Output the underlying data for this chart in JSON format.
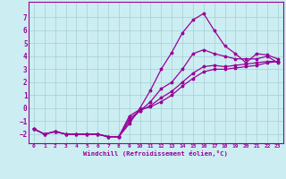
{
  "xlabel": "Windchill (Refroidissement éolien,°C)",
  "xlim": [
    -0.5,
    23.5
  ],
  "ylim": [
    -2.7,
    8.2
  ],
  "xticks": [
    0,
    1,
    2,
    3,
    4,
    5,
    6,
    7,
    8,
    9,
    10,
    11,
    12,
    13,
    14,
    15,
    16,
    17,
    18,
    19,
    20,
    21,
    22,
    23
  ],
  "yticks": [
    -2,
    -1,
    0,
    1,
    2,
    3,
    4,
    5,
    6,
    7
  ],
  "background_color": "#cceef2",
  "grid_color": "#aad4d8",
  "line_color": "#990099",
  "lines": [
    {
      "x": [
        0,
        1,
        2,
        3,
        4,
        5,
        6,
        7,
        8,
        9,
        10,
        11,
        12,
        13,
        14,
        15,
        16,
        17,
        18,
        19,
        20,
        21,
        22,
        23
      ],
      "y": [
        -1.6,
        -2.0,
        -1.8,
        -2.0,
        -2.0,
        -2.0,
        -2.0,
        -2.2,
        -2.2,
        -1.2,
        0.0,
        1.4,
        3.0,
        4.3,
        5.8,
        6.8,
        7.3,
        6.0,
        4.8,
        4.2,
        3.5,
        4.2,
        4.1,
        3.8
      ]
    },
    {
      "x": [
        0,
        1,
        2,
        3,
        4,
        5,
        6,
        7,
        8,
        9,
        10,
        11,
        12,
        13,
        14,
        15,
        16,
        17,
        18,
        19,
        20,
        21,
        22,
        23
      ],
      "y": [
        -1.6,
        -2.0,
        -1.8,
        -2.0,
        -2.0,
        -2.0,
        -2.0,
        -2.2,
        -2.2,
        -1.0,
        -0.2,
        0.5,
        1.5,
        2.0,
        3.0,
        4.2,
        4.5,
        4.2,
        4.0,
        3.8,
        3.8,
        3.8,
        4.0,
        3.5
      ]
    },
    {
      "x": [
        0,
        1,
        2,
        3,
        4,
        5,
        6,
        7,
        8,
        9,
        10,
        11,
        12,
        13,
        14,
        15,
        16,
        17,
        18,
        19,
        20,
        21,
        22,
        23
      ],
      "y": [
        -1.6,
        -2.0,
        -1.8,
        -2.0,
        -2.0,
        -2.0,
        -2.0,
        -2.2,
        -2.2,
        -0.8,
        -0.2,
        0.2,
        0.8,
        1.3,
        2.0,
        2.7,
        3.2,
        3.3,
        3.2,
        3.3,
        3.4,
        3.5,
        3.6,
        3.6
      ]
    },
    {
      "x": [
        0,
        1,
        2,
        3,
        4,
        5,
        6,
        7,
        8,
        9,
        10,
        11,
        12,
        13,
        14,
        15,
        16,
        17,
        18,
        19,
        20,
        21,
        22,
        23
      ],
      "y": [
        -1.6,
        -2.0,
        -1.8,
        -2.0,
        -2.0,
        -2.0,
        -2.0,
        -2.2,
        -2.2,
        -0.6,
        -0.1,
        0.1,
        0.5,
        1.0,
        1.7,
        2.3,
        2.8,
        3.0,
        3.0,
        3.1,
        3.2,
        3.3,
        3.5,
        3.6
      ]
    }
  ]
}
